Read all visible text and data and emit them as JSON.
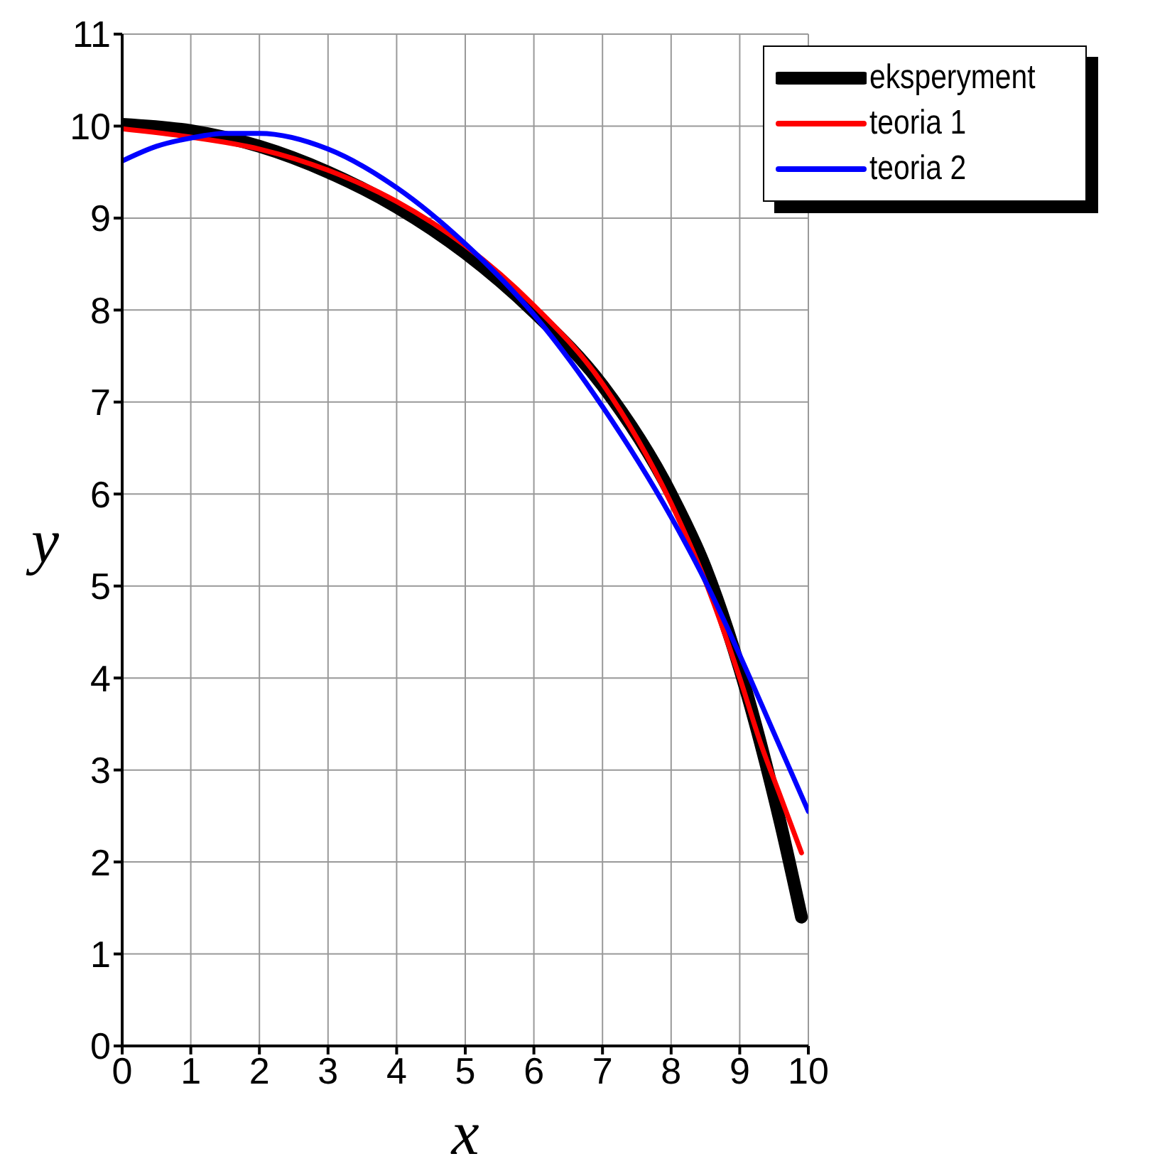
{
  "chart_data": {
    "type": "line",
    "xlabel": "x",
    "ylabel": "y",
    "xlim": [
      0,
      10
    ],
    "ylim": [
      0,
      11
    ],
    "xticks": [
      0,
      1,
      2,
      3,
      4,
      5,
      6,
      7,
      8,
      9,
      10
    ],
    "yticks": [
      0,
      1,
      2,
      3,
      4,
      5,
      6,
      7,
      8,
      9,
      10,
      11
    ],
    "grid": true,
    "legend": "top right",
    "marker": "none",
    "line_style": "solid",
    "series": [
      {
        "name": "eksperyment",
        "color": "#000000",
        "x": [
          0,
          1,
          2,
          3,
          4,
          5,
          6,
          7,
          8,
          8.5,
          9,
          9.3,
          9.6,
          9.9
        ],
        "values": [
          10.02,
          9.95,
          9.78,
          9.5,
          9.12,
          8.62,
          7.98,
          7.18,
          6.0,
          5.2,
          4.1,
          3.3,
          2.4,
          1.4
        ]
      },
      {
        "name": "teoria 1",
        "color": "#ff0000",
        "x": [
          0,
          1,
          2,
          3,
          4,
          5,
          6,
          7,
          8,
          8.5,
          9,
          9.3,
          9.6,
          9.9
        ],
        "values": [
          9.97,
          9.88,
          9.75,
          9.52,
          9.18,
          8.7,
          8.05,
          7.2,
          5.9,
          5.05,
          4.0,
          3.3,
          2.7,
          2.1
        ]
      },
      {
        "name": "teoria 2",
        "color": "#0000ff",
        "x": [
          0,
          0.5,
          1,
          1.5,
          2,
          3,
          4,
          5,
          6,
          7,
          8,
          8.5,
          9,
          9.5,
          10
        ],
        "values": [
          9.62,
          9.78,
          9.87,
          9.92,
          9.92,
          9.75,
          9.33,
          8.72,
          7.95,
          6.95,
          5.75,
          5.05,
          4.25,
          3.4,
          2.55
        ]
      }
    ]
  }
}
